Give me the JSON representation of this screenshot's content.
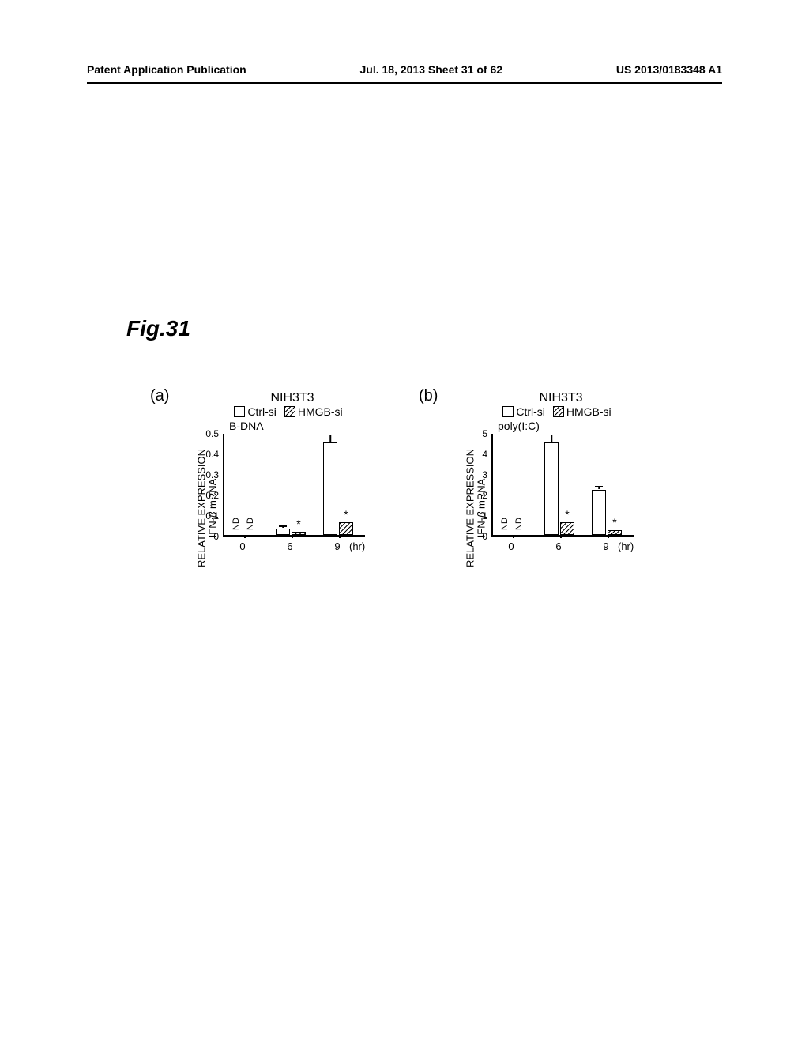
{
  "header": {
    "left": "Patent Application Publication",
    "center": "Jul. 18, 2013  Sheet 31 of 62",
    "right": "US 2013/0183348 A1"
  },
  "figure_title": "Fig.31",
  "panels": [
    {
      "label": "(a)",
      "cell_line": "NIH3T3",
      "legend": [
        {
          "key": "ctrl",
          "label": "Ctrl-si",
          "hatched": false
        },
        {
          "key": "hmgb",
          "label": "HMGB-si",
          "hatched": true
        }
      ],
      "stimulus": "B-DNA",
      "y_axis_label_line1": "IFN-β mRNA",
      "y_axis_label_line2": "RELATIVE EXPRESSION",
      "y_ticks": [
        "0",
        "0.1",
        "0.2",
        "0.3",
        "0.4",
        "0.5"
      ],
      "y_max": 0.5,
      "x_ticks": [
        "0",
        "6",
        "9"
      ],
      "x_unit": "(hr)",
      "groups": [
        {
          "x": 0,
          "bars": [
            {
              "value": 0,
              "err": 0,
              "nd": true,
              "star": false,
              "hatched": false
            },
            {
              "value": 0,
              "err": 0,
              "nd": true,
              "star": false,
              "hatched": true
            }
          ]
        },
        {
          "x": 6,
          "bars": [
            {
              "value": 0.03,
              "err": 0.005,
              "nd": false,
              "star": false,
              "hatched": false
            },
            {
              "value": 0.015,
              "err": 0,
              "nd": false,
              "star": true,
              "hatched": true
            }
          ]
        },
        {
          "x": 9,
          "bars": [
            {
              "value": 0.45,
              "err": 0.03,
              "nd": false,
              "star": false,
              "hatched": false
            },
            {
              "value": 0.06,
              "err": 0,
              "nd": false,
              "star": true,
              "hatched": true
            }
          ]
        }
      ],
      "colors": {
        "bar_border": "#000000",
        "bar_fill": "#ffffff",
        "axis": "#000000",
        "background": "#ffffff"
      }
    },
    {
      "label": "(b)",
      "cell_line": "NIH3T3",
      "legend": [
        {
          "key": "ctrl",
          "label": "Ctrl-si",
          "hatched": false
        },
        {
          "key": "hmgb",
          "label": "HMGB-si",
          "hatched": true
        }
      ],
      "stimulus": "poly(I:C)",
      "y_axis_label_line1": "IFN-β mRNA",
      "y_axis_label_line2": "RELATIVE EXPRESSION",
      "y_ticks": [
        "0",
        "1",
        "2",
        "3",
        "4",
        "5"
      ],
      "y_max": 5,
      "x_ticks": [
        "0",
        "6",
        "9"
      ],
      "x_unit": "(hr)",
      "groups": [
        {
          "x": 0,
          "bars": [
            {
              "value": 0,
              "err": 0,
              "nd": true,
              "star": false,
              "hatched": false
            },
            {
              "value": 0,
              "err": 0,
              "nd": true,
              "star": false,
              "hatched": true
            }
          ]
        },
        {
          "x": 6,
          "bars": [
            {
              "value": 4.5,
              "err": 0.3,
              "nd": false,
              "star": false,
              "hatched": false
            },
            {
              "value": 0.6,
              "err": 0,
              "nd": false,
              "star": true,
              "hatched": true
            }
          ]
        },
        {
          "x": 9,
          "bars": [
            {
              "value": 2.2,
              "err": 0.1,
              "nd": false,
              "star": false,
              "hatched": false
            },
            {
              "value": 0.25,
              "err": 0,
              "nd": false,
              "star": true,
              "hatched": true
            }
          ]
        }
      ],
      "colors": {
        "bar_border": "#000000",
        "bar_fill": "#ffffff",
        "axis": "#000000",
        "background": "#ffffff"
      }
    }
  ]
}
